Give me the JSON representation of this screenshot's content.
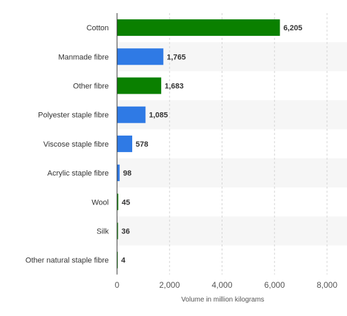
{
  "chart_data": {
    "type": "bar",
    "orientation": "horizontal",
    "categories": [
      "Cotton",
      "Manmade fibre",
      "Other fibre",
      "Polyester staple fibre",
      "Viscose staple fibre",
      "Acrylic staple fibre",
      "Wool",
      "Silk",
      "Other natural staple fibre"
    ],
    "values": [
      6205,
      1765,
      1683,
      1085,
      578,
      98,
      45,
      36,
      4
    ],
    "value_labels": [
      "6,205",
      "1,765",
      "1,683",
      "1,085",
      "578",
      "98",
      "45",
      "36",
      "4"
    ],
    "bar_colors": [
      "#0a8000",
      "#2f7ae5",
      "#0a8000",
      "#2f7ae5",
      "#2f7ae5",
      "#2f7ae5",
      "#0a8000",
      "#0a8000",
      "#0a8000"
    ],
    "xlabel": "Volume in million kilograms",
    "ylabel": "",
    "xlim": [
      0,
      8000
    ],
    "xticks": [
      0,
      2000,
      4000,
      6000,
      8000
    ],
    "xtick_labels": [
      "0",
      "2,000",
      "4,000",
      "6,000",
      "8,000"
    ],
    "grid": true,
    "row_banding": true
  }
}
